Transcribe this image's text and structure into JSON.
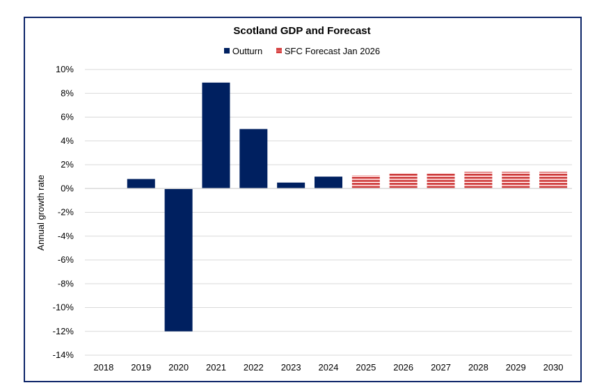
{
  "chart_data": {
    "type": "bar",
    "title": "Scotland GDP and Forecast",
    "xlabel": "",
    "ylabel": "Annual growth rate",
    "categories": [
      "2018",
      "2019",
      "2020",
      "2021",
      "2022",
      "2023",
      "2024",
      "2025",
      "2026",
      "2027",
      "2028",
      "2029",
      "2030"
    ],
    "series": [
      {
        "name": "Outturn",
        "color": "#002060",
        "values": [
          0,
          0.8,
          -12.0,
          8.9,
          5.0,
          0.5,
          1.0,
          null,
          null,
          null,
          null,
          null,
          null
        ]
      },
      {
        "name": "SFC Forecast Jan 2026",
        "color": "#c00000",
        "pattern": "horizontal-stripes",
        "values": [
          null,
          null,
          null,
          null,
          null,
          null,
          null,
          1.1,
          1.3,
          1.3,
          1.4,
          1.4,
          1.4
        ]
      }
    ],
    "ylim": [
      -14,
      10
    ],
    "yticks": [
      "10%",
      "8%",
      "6%",
      "4%",
      "2%",
      "0%",
      "-2%",
      "-4%",
      "-6%",
      "-8%",
      "-10%",
      "-12%",
      "-14%"
    ],
    "grid": true,
    "legend": "top-center"
  }
}
